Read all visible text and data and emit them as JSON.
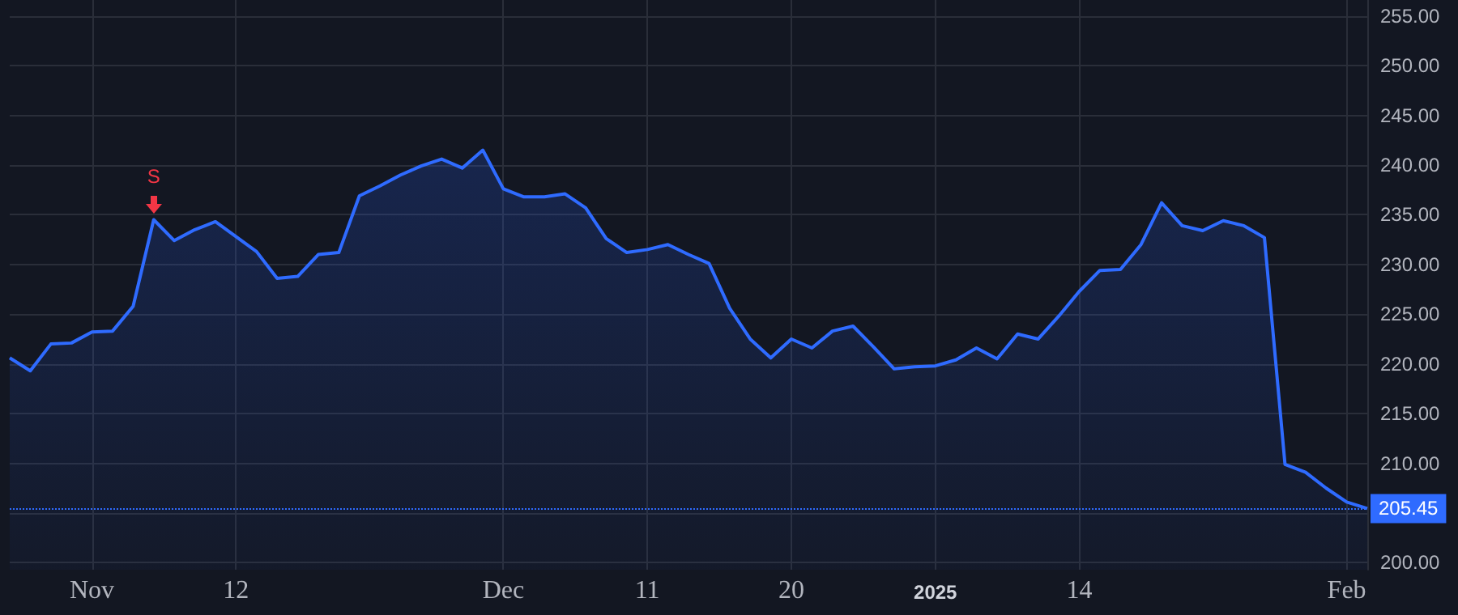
{
  "chart_data": {
    "type": "area",
    "categories": [
      null,
      null,
      null,
      null,
      "Nov",
      null,
      null,
      null,
      null,
      null,
      null,
      "12",
      null,
      null,
      null,
      null,
      null,
      null,
      null,
      null,
      null,
      null,
      null,
      null,
      "Dec",
      null,
      null,
      null,
      null,
      null,
      null,
      "11",
      null,
      null,
      null,
      null,
      null,
      null,
      "20",
      null,
      null,
      null,
      null,
      null,
      null,
      "2025",
      null,
      null,
      null,
      null,
      null,
      null,
      "14",
      null,
      null,
      null,
      null,
      null,
      null,
      null,
      null,
      null,
      null,
      null,
      null,
      "Feb",
      null
    ],
    "series": [
      {
        "color": "#2f6bff",
        "values": [
          220.6,
          219.3,
          222.0,
          222.1,
          223.2,
          223.3,
          225.8,
          234.5,
          232.4,
          233.5,
          234.3,
          232.8,
          231.3,
          228.6,
          228.8,
          231.0,
          231.2,
          236.9,
          237.9,
          239.0,
          239.9,
          240.6,
          239.7,
          241.5,
          237.6,
          236.8,
          236.8,
          237.1,
          235.7,
          232.6,
          231.2,
          231.5,
          232.0,
          231.0,
          230.1,
          225.6,
          222.5,
          220.6,
          222.5,
          221.6,
          223.3,
          223.8,
          221.7,
          219.5,
          219.7,
          219.8,
          220.4,
          221.6,
          220.5,
          223.0,
          222.5,
          224.8,
          227.3,
          229.4,
          229.5,
          232.0,
          236.2,
          233.9,
          233.4,
          234.4,
          233.9,
          232.7,
          209.9,
          209.1,
          207.5,
          206.1,
          205.45
        ]
      }
    ],
    "ylim": [
      199.3,
      256.6
    ],
    "yticks": [
      {
        "value": 200,
        "label": "200.00"
      },
      {
        "value": 205,
        "label": null
      },
      {
        "value": 210,
        "label": "210.00"
      },
      {
        "value": 215,
        "label": "215.00"
      },
      {
        "value": 220,
        "label": "220.00"
      },
      {
        "value": 225,
        "label": "225.00"
      },
      {
        "value": 230,
        "label": "230.00"
      },
      {
        "value": 235,
        "label": "235.00"
      },
      {
        "value": 240,
        "label": "240.00"
      },
      {
        "value": 245,
        "label": "245.00"
      },
      {
        "value": 250,
        "label": "250.00"
      },
      {
        "value": 255,
        "label": "255.00"
      }
    ],
    "ref_lines": [
      {
        "axis": "y",
        "value": 205.45,
        "label": "205.45",
        "color": "#2f6bff",
        "line_style": "dotted"
      }
    ],
    "annotations": [
      {
        "text": "S",
        "y": 234.5
      }
    ],
    "grid": true,
    "marker": "none",
    "line_style": "solid"
  }
}
